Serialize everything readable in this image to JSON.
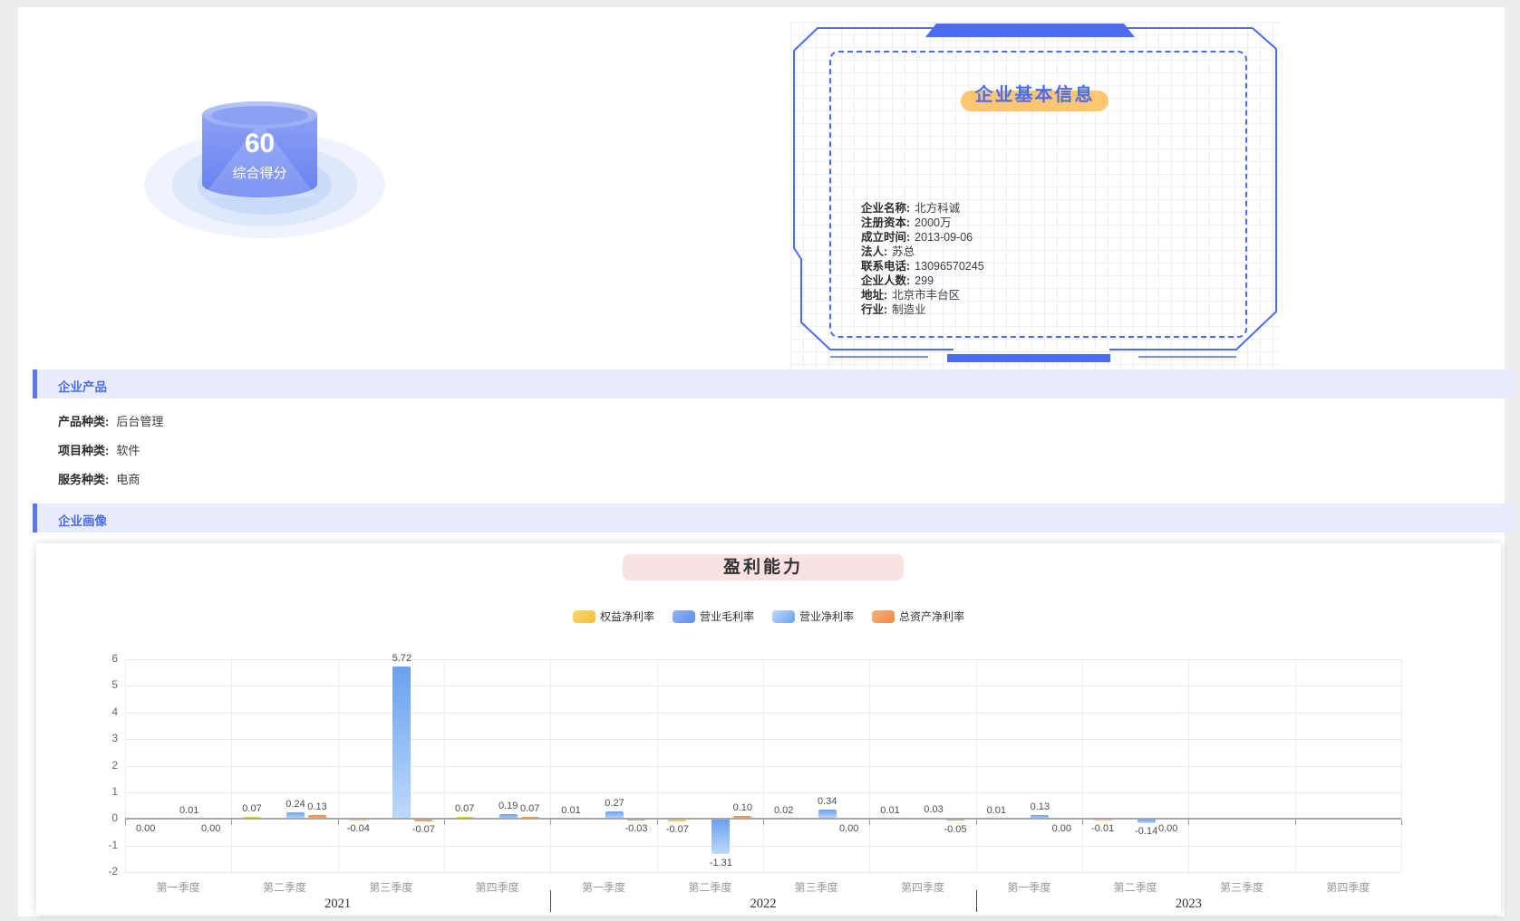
{
  "page": {
    "bg": "#ededed",
    "accent_blue": "#4b6bf3"
  },
  "score_widget": {
    "score": "60",
    "label": "综合得分"
  },
  "info_panel": {
    "title": "企业基本信息",
    "fields": [
      {
        "label": "企业名称:",
        "value": "北方科诚"
      },
      {
        "label": "注册资本:",
        "value": "2000万"
      },
      {
        "label": "成立时间:",
        "value": "2013-09-06"
      },
      {
        "label": "法人:",
        "value": "苏总"
      },
      {
        "label": "联系电话:",
        "value": "13096570245"
      },
      {
        "label": "企业人数:",
        "value": "299"
      },
      {
        "label": "地址:",
        "value": "北京市丰台区"
      },
      {
        "label": "行业:",
        "value": "制造业"
      }
    ]
  },
  "products_section": {
    "title": "企业产品",
    "rows": [
      {
        "label": "产品种类:",
        "value": "后台管理"
      },
      {
        "label": "项目种类:",
        "value": "软件"
      },
      {
        "label": "服务种类:",
        "value": "电商"
      }
    ]
  },
  "portrait_section": {
    "title": "企业画像"
  },
  "chart_data": {
    "type": "bar",
    "title": "盈利能力",
    "legend_position": "top",
    "grid": true,
    "ylim": [
      -2,
      6
    ],
    "y_ticks": [
      6,
      5,
      4,
      3,
      2,
      1,
      0,
      -1,
      -2
    ],
    "categories": [
      "第一季度",
      "第二季度",
      "第三季度",
      "第四季度",
      "第一季度",
      "第二季度",
      "第三季度",
      "第四季度",
      "第一季度",
      "第二季度",
      "第三季度",
      "第四季度"
    ],
    "years": [
      {
        "label": "2021",
        "span": 4
      },
      {
        "label": "2022",
        "span": 4
      },
      {
        "label": "2023",
        "span": 4
      }
    ],
    "series": [
      {
        "name": "权益净利率",
        "color": "#f6bd3c",
        "color_light": "#fbd76e",
        "values": [
          0,
          0.07,
          -0.04,
          0.07,
          0.01,
          -0.07,
          0.02,
          0.01,
          0.01,
          -0.01,
          null,
          null
        ]
      },
      {
        "name": "营业毛利率",
        "color": "#5e8cee",
        "color_light": "#93b4f5",
        "values": [
          null,
          null,
          null,
          null,
          null,
          null,
          null,
          null,
          null,
          null,
          null,
          null
        ]
      },
      {
        "name": "营业净利率",
        "color": "#69a1ef",
        "color_light": "#bdd9fb",
        "values": [
          0.01,
          0.24,
          5.72,
          0.19,
          0.27,
          -1.31,
          0.34,
          0.03,
          0.13,
          -0.14,
          null,
          null
        ]
      },
      {
        "name": "总资产净利率",
        "color": "#ee8b44",
        "color_light": "#f6b07c",
        "values": [
          0,
          0.13,
          -0.07,
          0.07,
          -0.03,
          0.1,
          0,
          -0.05,
          0,
          0,
          null,
          null
        ]
      }
    ]
  }
}
